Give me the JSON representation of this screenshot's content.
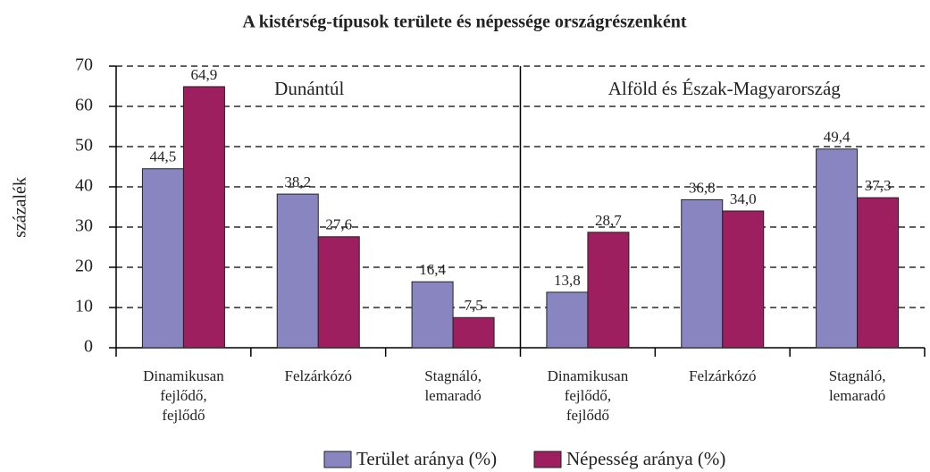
{
  "chart_data": {
    "type": "bar",
    "title": "A kistérség-típusok területe és népessége országrészenként",
    "y_label": "százalék",
    "categories": [
      "Dinamikusan fejlődő, fejlődő",
      "Felzárkózó",
      "Stagnáló, lemaradó",
      "Dinamikusan fejlődő, fejlődő",
      "Felzárkózó",
      "Stagnáló, lemaradó"
    ],
    "annotations": [
      "Dunántúl",
      "Alföld és Észak-Magyarország"
    ],
    "series": [
      {
        "name": "Terület aránya (%)",
        "color": "#8985c0",
        "values": [
          44.5,
          38.2,
          16.4,
          13.8,
          36.8,
          49.4
        ],
        "value_labels": [
          "44,5",
          "38,2",
          "16,4",
          "13,8",
          "36,8",
          "49,4"
        ]
      },
      {
        "name": "Népesség aránya (%)",
        "color": "#9e1f5f",
        "values": [
          64.9,
          27.6,
          7.5,
          28.7,
          34.0,
          37.3
        ],
        "value_labels": [
          "64,9",
          "27,6",
          "7,5",
          "28,7",
          "34,0",
          "37,3"
        ]
      }
    ],
    "ylim": [
      0,
      70
    ],
    "yticks": [
      0,
      10,
      20,
      30,
      40,
      50,
      60,
      70
    ],
    "grid": true,
    "legend": "bottom"
  }
}
